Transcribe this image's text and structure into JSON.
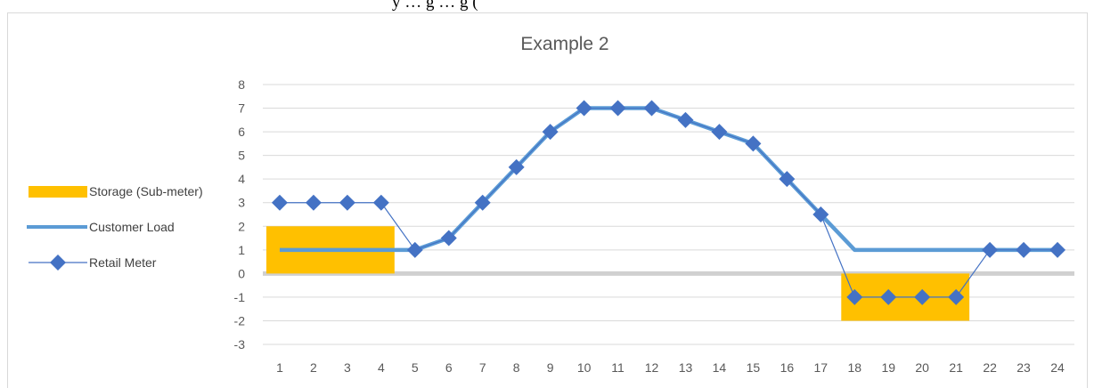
{
  "page_header_text": "y … g … g (",
  "chart_data": {
    "type": "line",
    "title": "Example 2",
    "xlabel": "",
    "ylabel": "",
    "categories": [
      "1",
      "2",
      "3",
      "4",
      "5",
      "6",
      "7",
      "8",
      "9",
      "10",
      "11",
      "12",
      "13",
      "14",
      "15",
      "16",
      "17",
      "18",
      "19",
      "20",
      "21",
      "22",
      "23",
      "24"
    ],
    "ylim": [
      -3,
      8
    ],
    "yticks": [
      -3,
      -2,
      -1,
      0,
      1,
      2,
      3,
      4,
      5,
      6,
      7,
      8
    ],
    "grid": true,
    "legend_position": "left",
    "series": [
      {
        "name": "Storage (Sub-meter)",
        "kind": "bar",
        "color": "#FFC000",
        "values": [
          2,
          2,
          2,
          2,
          null,
          null,
          null,
          null,
          null,
          null,
          null,
          null,
          null,
          null,
          null,
          null,
          null,
          -2,
          -2,
          -2,
          -2,
          null,
          null,
          null
        ]
      },
      {
        "name": "Customer Load",
        "kind": "line",
        "color": "#5B9BD5",
        "values": [
          1,
          1,
          1,
          1,
          1,
          1.5,
          3,
          4.5,
          6,
          7,
          7,
          7,
          6.5,
          6,
          5.5,
          4,
          2.5,
          1,
          1,
          1,
          1,
          1,
          1,
          1
        ]
      },
      {
        "name": "Retail Meter",
        "kind": "line-markers",
        "color": "#4472C4",
        "values": [
          3,
          3,
          3,
          3,
          1,
          1.5,
          3,
          4.5,
          6,
          7,
          7,
          7,
          6.5,
          6,
          5.5,
          4,
          2.5,
          -1,
          -1,
          -1,
          -1,
          1,
          1,
          1
        ]
      }
    ]
  }
}
